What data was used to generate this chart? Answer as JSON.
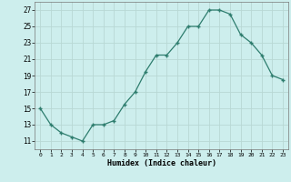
{
  "x": [
    0,
    1,
    2,
    3,
    4,
    5,
    6,
    7,
    8,
    9,
    10,
    11,
    12,
    13,
    14,
    15,
    16,
    17,
    18,
    19,
    20,
    21,
    22,
    23
  ],
  "y": [
    15,
    13,
    12,
    11.5,
    11,
    13,
    13,
    13.5,
    15.5,
    17,
    19.5,
    21.5,
    21.5,
    23,
    25,
    25,
    27,
    27,
    26.5,
    24,
    23,
    21.5,
    19,
    18.5
  ],
  "xlabel": "Humidex (Indice chaleur)",
  "xlim": [
    -0.5,
    23.5
  ],
  "ylim": [
    10,
    28
  ],
  "yticks": [
    11,
    13,
    15,
    17,
    19,
    21,
    23,
    25,
    27
  ],
  "xticks": [
    0,
    1,
    2,
    3,
    4,
    5,
    6,
    7,
    8,
    9,
    10,
    11,
    12,
    13,
    14,
    15,
    16,
    17,
    18,
    19,
    20,
    21,
    22,
    23
  ],
  "line_color": "#2e7d6e",
  "bg_color": "#cdeeed",
  "grid_color": "#b8d8d4"
}
